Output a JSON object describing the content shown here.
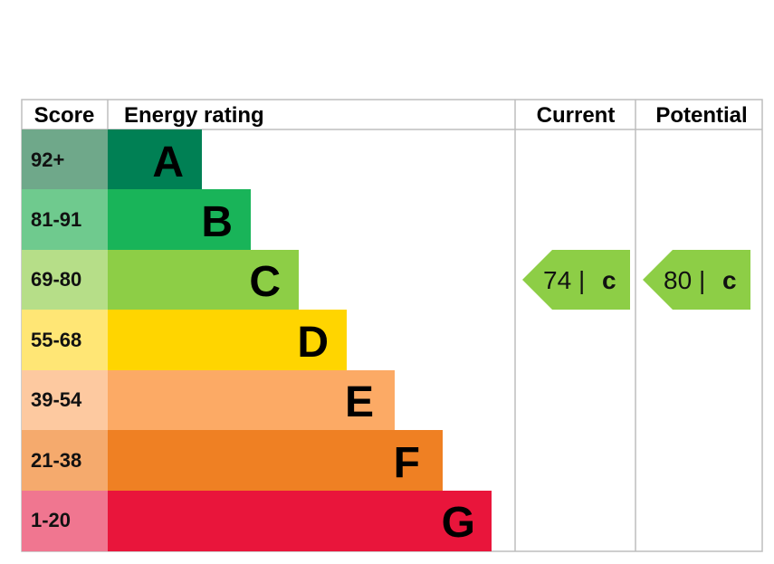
{
  "headers": {
    "score": "Score",
    "energy_rating": "Energy rating",
    "current": "Current",
    "potential": "Potential"
  },
  "chart_data": {
    "type": "bar",
    "bands": [
      {
        "letter": "A",
        "score": "92+",
        "color": "#008054",
        "score_color": "#6fa88a"
      },
      {
        "letter": "B",
        "score": "81-91",
        "color": "#19b459",
        "score_color": "#6fca8e"
      },
      {
        "letter": "C",
        "score": "69-80",
        "color": "#8dce46",
        "score_color": "#b6de88"
      },
      {
        "letter": "D",
        "score": "55-68",
        "color": "#ffd500",
        "score_color": "#ffe675"
      },
      {
        "letter": "E",
        "score": "39-54",
        "color": "#fcaa65",
        "score_color": "#fdc9a0"
      },
      {
        "letter": "F",
        "score": "21-38",
        "color": "#ef8023",
        "score_color": "#f5aa6d"
      },
      {
        "letter": "G",
        "score": "1-20",
        "color": "#e9153b",
        "score_color": "#f07690"
      }
    ],
    "current": {
      "value": 74,
      "separator": "|",
      "letter": "c",
      "band": "C",
      "color": "#8dce46"
    },
    "potential": {
      "value": 80,
      "separator": "|",
      "letter": "c",
      "band": "C",
      "color": "#8dce46"
    }
  }
}
